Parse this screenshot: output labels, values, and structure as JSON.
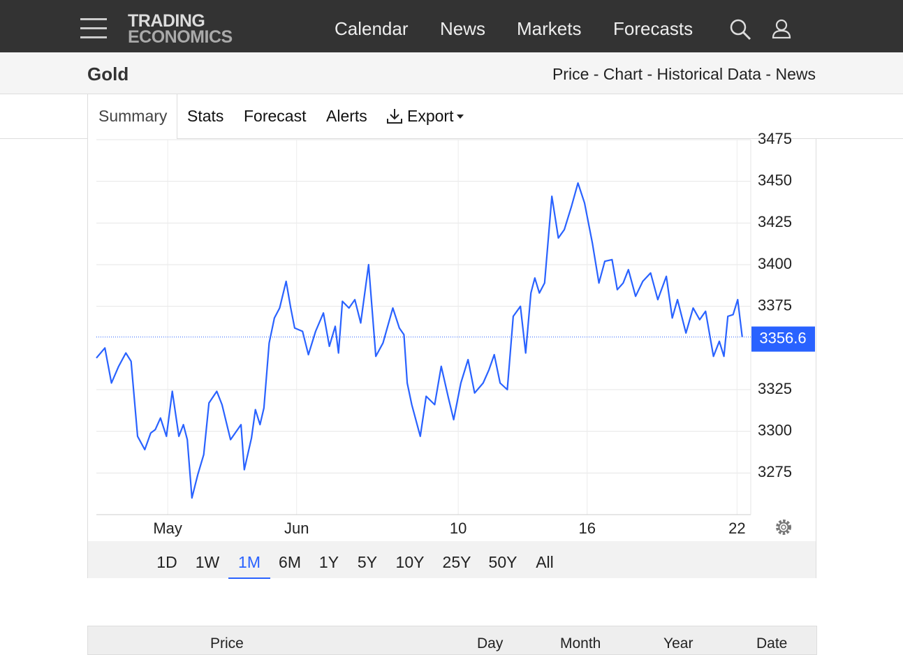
{
  "header": {
    "logo": [
      "TRADING",
      "ECONOMICS"
    ],
    "nav": [
      "Calendar",
      "News",
      "Markets",
      "Forecasts"
    ]
  },
  "title": "Gold",
  "subnav": "Price - Chart - Historical Data - News",
  "tabs": [
    "Summary",
    "Stats",
    "Forecast",
    "Alerts",
    "Export"
  ],
  "chart_data": {
    "type": "line",
    "color": "#2962ff",
    "x": [
      0,
      1.3,
      2.3,
      3.4,
      4.5,
      5.3,
      6.3,
      7.4,
      8.3,
      9.0,
      9.8,
      10.7,
      11.6,
      12.6,
      13.3,
      13.9,
      14.6,
      15.5,
      16.4,
      17.2,
      18.4,
      19.2,
      20.5,
      22.1,
      22.6,
      23.7,
      24.3,
      25.0,
      25.6,
      26.4,
      27.2,
      28.0,
      29.0,
      29.7,
      30.3,
      31.5,
      32.4,
      33.5,
      34.7,
      35.6,
      36.5,
      37.0,
      37.6,
      38.6,
      39.5,
      40.4,
      41.6,
      42.7,
      43.8,
      45.3,
      46.3,
      47.0,
      47.5,
      48.2,
      49.5,
      50.4,
      51.7,
      52.7,
      53.8,
      54.6,
      55.7,
      56.8,
      57.8,
      59.1,
      60.0,
      60.8,
      61.7,
      62.8,
      63.7,
      64.8,
      65.6,
      66.4,
      67.0,
      67.7,
      68.5,
      69.6,
      70.6,
      71.5,
      72.6,
      73.6,
      74.6,
      75.8,
      76.8,
      77.7,
      78.8,
      79.6,
      80.5,
      81.3,
      82.4,
      83.5,
      84.7,
      85.8,
      87.1,
      88.0,
      88.8,
      90.1,
      91.2,
      92.2,
      93.1,
      94.3,
      95.2,
      95.9,
      96.5,
      97.3,
      98.0,
      98.7
    ],
    "values": [
      3344,
      3350,
      3329,
      3339,
      3347,
      3342,
      3297,
      3289,
      3299,
      3301,
      3308,
      3297,
      3324,
      3297,
      3304,
      3295,
      3260,
      3274,
      3286,
      3317,
      3324,
      3316,
      3295,
      3304,
      3277,
      3296,
      3313,
      3304,
      3314,
      3353,
      3368,
      3374,
      3390,
      3374,
      3362,
      3360,
      3346,
      3360,
      3371,
      3351,
      3363,
      3347,
      3378,
      3374,
      3379,
      3365,
      3400,
      3345,
      3353,
      3374,
      3362,
      3358,
      3329,
      3316,
      3297,
      3321,
      3316,
      3339,
      3320,
      3307,
      3329,
      3343,
      3323,
      3329,
      3337,
      3346,
      3329,
      3325,
      3369,
      3375,
      3347,
      3383,
      3392,
      3383,
      3389,
      3441,
      3416,
      3421,
      3435,
      3449,
      3437,
      3413,
      3389,
      3402,
      3403,
      3385,
      3389,
      3397,
      3381,
      3390,
      3395,
      3379,
      3393,
      3368,
      3379,
      3359,
      3374,
      3367,
      3372,
      3345,
      3354,
      3345,
      3369,
      3370,
      3379,
      3356.6
    ],
    "last_price": 3356.6,
    "xlim": [
      0,
      100
    ],
    "xticks": [
      {
        "value": 10.9,
        "label": "May"
      },
      {
        "value": 30.6,
        "label": "Jun"
      },
      {
        "value": 55.3,
        "label": "10"
      },
      {
        "value": 75.0,
        "label": "16"
      },
      {
        "value": 97.9,
        "label": "22"
      }
    ],
    "ylim": [
      3250,
      3475
    ],
    "yticks": [
      3275,
      3300,
      3325,
      3375,
      3400,
      3425,
      3450,
      3475
    ],
    "grid": true
  },
  "ranges": [
    "1D",
    "1W",
    "1M",
    "6M",
    "1Y",
    "5Y",
    "10Y",
    "25Y",
    "50Y",
    "All"
  ],
  "active_range": 2,
  "table": {
    "columns": [
      "Price",
      "Day",
      "Month",
      "Year",
      "Date"
    ]
  }
}
